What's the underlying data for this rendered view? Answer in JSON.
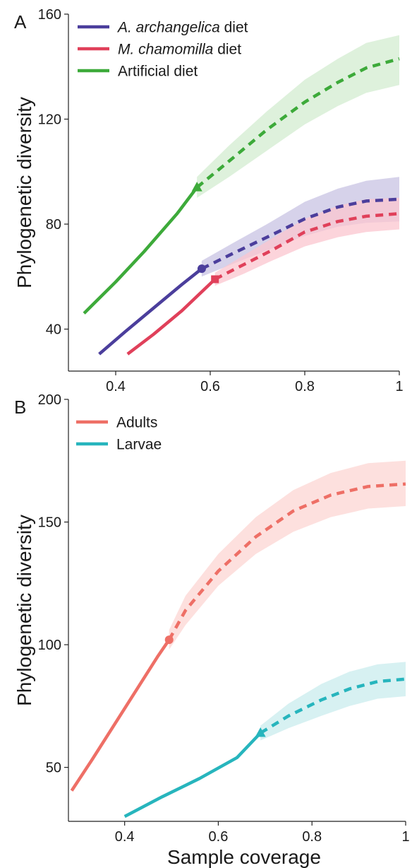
{
  "chart_data": [
    {
      "panel": "A",
      "type": "line",
      "xlabel": "",
      "ylabel": "Phylogenetic diversity",
      "xlim": [
        0.3,
        1.0
      ],
      "ylim": [
        24,
        160
      ],
      "xticks": [
        0.4,
        0.6,
        0.8,
        1
      ],
      "xtick_labels": [
        "0.4",
        "0.6",
        "0.8",
        "1"
      ],
      "yticks": [
        40,
        80,
        120,
        160
      ],
      "ytick_labels": [
        "40",
        "80",
        "120",
        "160"
      ],
      "legend_position": "top-left",
      "grid": false,
      "series": [
        {
          "name_parts": [
            {
              "text": "A. archangelica",
              "italic": true
            },
            {
              "text": " diet",
              "italic": false
            }
          ],
          "color": "#4b3e9c",
          "band_color": "#c8c3e3",
          "marker": "circle",
          "interpolated": [
            [
              0.365,
              30.5
            ],
            [
              0.42,
              39
            ],
            [
              0.48,
              48
            ],
            [
              0.54,
              57
            ],
            [
              0.582,
              63
            ]
          ],
          "extrapolated": [
            [
              0.582,
              63
            ],
            [
              0.65,
              69
            ],
            [
              0.72,
              75
            ],
            [
              0.8,
              82
            ],
            [
              0.87,
              86.5
            ],
            [
              0.93,
              88.8
            ],
            [
              1.0,
              89.5
            ]
          ],
          "band": [
            [
              0.582,
              60,
              66
            ],
            [
              0.65,
              65,
              73
            ],
            [
              0.72,
              70,
              80
            ],
            [
              0.8,
              75.5,
              88.5
            ],
            [
              0.87,
              79,
              93.5
            ],
            [
              0.93,
              80.5,
              96.5
            ],
            [
              1.0,
              81,
              98
            ]
          ]
        },
        {
          "name_parts": [
            {
              "text": "M. chamomilla",
              "italic": true
            },
            {
              "text": " diet",
              "italic": false
            }
          ],
          "color": "#e0405a",
          "band_color": "#fbc6cf",
          "marker": "square",
          "interpolated": [
            [
              0.425,
              30.5
            ],
            [
              0.48,
              38
            ],
            [
              0.54,
              47
            ],
            [
              0.61,
              59
            ]
          ],
          "extrapolated": [
            [
              0.61,
              59
            ],
            [
              0.67,
              64.5
            ],
            [
              0.73,
              70
            ],
            [
              0.8,
              77
            ],
            [
              0.87,
              81
            ],
            [
              0.93,
              83
            ],
            [
              1.0,
              84
            ]
          ],
          "band": [
            [
              0.61,
              56.5,
              61.5
            ],
            [
              0.67,
              61,
              68
            ],
            [
              0.73,
              66,
              74.5
            ],
            [
              0.8,
              71.5,
              82
            ],
            [
              0.87,
              75,
              87
            ],
            [
              0.93,
              77,
              89.5
            ],
            [
              1.0,
              78,
              90
            ]
          ]
        },
        {
          "name_parts": [
            {
              "text": "Artificial diet",
              "italic": false
            }
          ],
          "color": "#3daa3a",
          "band_color": "#d3ecd0",
          "marker": "triangle",
          "interpolated": [
            [
              0.333,
              46
            ],
            [
              0.4,
              58
            ],
            [
              0.46,
              69.5
            ],
            [
              0.53,
              84
            ],
            [
              0.572,
              94
            ]
          ],
          "extrapolated": [
            [
              0.572,
              94
            ],
            [
              0.64,
              104
            ],
            [
              0.72,
              116
            ],
            [
              0.8,
              126.5
            ],
            [
              0.87,
              134
            ],
            [
              0.93,
              139.5
            ],
            [
              1.0,
              143
            ]
          ],
          "band": [
            [
              0.572,
              90,
              98
            ],
            [
              0.64,
              98,
              110
            ],
            [
              0.72,
              108,
              123
            ],
            [
              0.8,
              118,
              135
            ],
            [
              0.87,
              125,
              143
            ],
            [
              0.93,
              130,
              149
            ],
            [
              1.0,
              133,
              152
            ]
          ]
        }
      ]
    },
    {
      "panel": "B",
      "type": "line",
      "xlabel": "Sample coverage",
      "ylabel": "Phylogenetic diversity",
      "xlim": [
        0.28,
        1.0
      ],
      "ylim": [
        28,
        200
      ],
      "xticks": [
        0.4,
        0.6,
        0.8,
        1
      ],
      "xtick_labels": [
        "0.4",
        "0.6",
        "0.8",
        "1"
      ],
      "yticks": [
        50,
        100,
        150,
        200
      ],
      "ytick_labels": [
        "50",
        "100",
        "150",
        "200"
      ],
      "legend_position": "top-left",
      "grid": false,
      "series": [
        {
          "name_parts": [
            {
              "text": "Adults",
              "italic": false
            }
          ],
          "color": "#ee6f66",
          "band_color": "#fcd5d3",
          "marker": "circle",
          "interpolated": [
            [
              0.287,
              40.5
            ],
            [
              0.33,
              53
            ],
            [
              0.38,
              68
            ],
            [
              0.43,
              83
            ],
            [
              0.47,
              95
            ],
            [
              0.495,
              102
            ]
          ],
          "extrapolated": [
            [
              0.495,
              102
            ],
            [
              0.53,
              114
            ],
            [
              0.6,
              130
            ],
            [
              0.68,
              144
            ],
            [
              0.76,
              154.5
            ],
            [
              0.84,
              161
            ],
            [
              0.92,
              164.5
            ],
            [
              1.0,
              165.5
            ]
          ],
          "band": [
            [
              0.495,
              98,
              106
            ],
            [
              0.53,
              108,
              120
            ],
            [
              0.6,
              124,
              137
            ],
            [
              0.68,
              137,
              152
            ],
            [
              0.76,
              146,
              163
            ],
            [
              0.84,
              152,
              170
            ],
            [
              0.92,
              155.5,
              174
            ],
            [
              1.0,
              156.5,
              175
            ]
          ]
        },
        {
          "name_parts": [
            {
              "text": "Larvae",
              "italic": false
            }
          ],
          "color": "#27b5bd",
          "band_color": "#c9ecee",
          "marker": "triangle",
          "interpolated": [
            [
              0.4,
              30
            ],
            [
              0.48,
              38
            ],
            [
              0.56,
              45.5
            ],
            [
              0.64,
              54
            ],
            [
              0.69,
              64
            ]
          ],
          "extrapolated": [
            [
              0.69,
              64
            ],
            [
              0.75,
              71
            ],
            [
              0.82,
              77.5
            ],
            [
              0.88,
              82
            ],
            [
              0.94,
              85
            ],
            [
              1.0,
              86
            ]
          ],
          "band": [
            [
              0.69,
              61,
              67
            ],
            [
              0.75,
              66,
              76
            ],
            [
              0.82,
              71,
              84
            ],
            [
              0.88,
              75,
              89
            ],
            [
              0.94,
              78,
              92
            ],
            [
              1.0,
              79,
              93
            ]
          ]
        }
      ]
    }
  ]
}
